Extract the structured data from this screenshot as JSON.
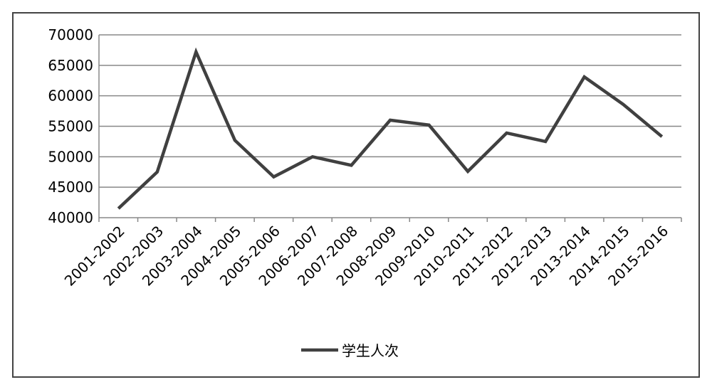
{
  "chart_data": {
    "type": "line",
    "categories": [
      "2001-2002",
      "2002-2003",
      "2003-2004",
      "2004-2005",
      "2005-2006",
      "2006-2007",
      "2007-2008",
      "2008-2009",
      "2009-2010",
      "2010-2011",
      "2011-2012",
      "2012-2013",
      "2013-2014",
      "2014-2015",
      "2015-2016"
    ],
    "series": [
      {
        "name": "学生人次",
        "color": "#404040",
        "values": [
          41500,
          47500,
          67200,
          52700,
          46700,
          50000,
          48600,
          56000,
          55200,
          47600,
          53900,
          52500,
          63100,
          58600,
          53300
        ]
      }
    ],
    "ylim": [
      40000,
      70000
    ],
    "yticks": [
      40000,
      45000,
      50000,
      55000,
      60000,
      65000,
      70000
    ],
    "grid": true,
    "legend": "bottom"
  }
}
